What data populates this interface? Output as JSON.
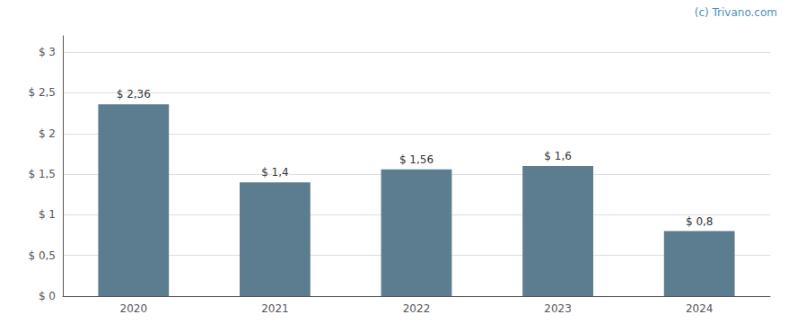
{
  "chart_data": {
    "type": "bar",
    "categories": [
      "2020",
      "2021",
      "2022",
      "2023",
      "2024"
    ],
    "values": [
      2.36,
      1.4,
      1.56,
      1.6,
      0.8
    ],
    "value_labels": [
      "$ 2,36",
      "$ 1,4",
      "$ 1,56",
      "$ 1,6",
      "$ 0,8"
    ],
    "data_labels": true,
    "color": "#5c7d8f",
    "ylim": [
      0,
      3.2
    ],
    "yticks": [
      {
        "value": 0,
        "label": "$ 0"
      },
      {
        "value": 0.5,
        "label": "$ 0,5"
      },
      {
        "value": 1.0,
        "label": "$ 1"
      },
      {
        "value": 1.5,
        "label": "$ 1,5"
      },
      {
        "value": 2.0,
        "label": "$ 2"
      },
      {
        "value": 2.5,
        "label": "$ 2,5"
      },
      {
        "value": 3.0,
        "label": "$ 3"
      }
    ],
    "grid": true,
    "annotations": [
      "(c) Trivano.com"
    ]
  }
}
